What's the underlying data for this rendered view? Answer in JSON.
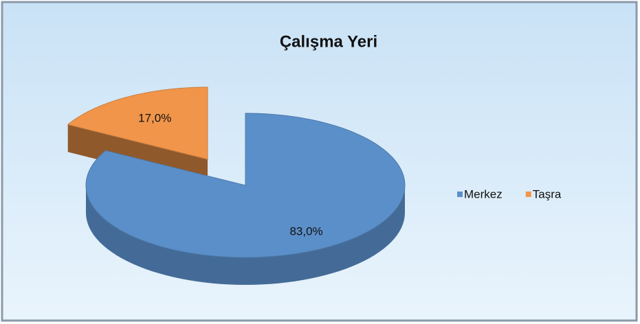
{
  "chart_data": {
    "type": "pie",
    "title": "Çalışma Yeri",
    "categories": [
      "Merkez",
      "Taşra"
    ],
    "values": [
      83,
      17
    ],
    "value_labels": [
      "83,0%",
      "17,0%"
    ],
    "colors": [
      "#5b8fc9",
      "#f0954a"
    ],
    "legend": "right"
  }
}
